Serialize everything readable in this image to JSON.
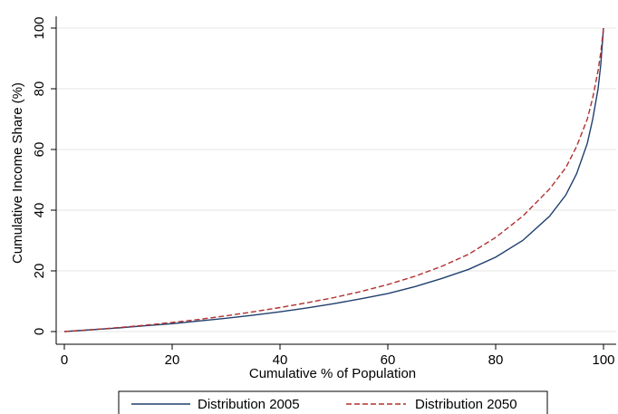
{
  "chart_data": {
    "type": "line",
    "title": "",
    "xlabel": "Cumulative % of Population",
    "ylabel": "Cumulative Income Share (%)",
    "xlim": [
      0,
      100
    ],
    "ylim": [
      0,
      100
    ],
    "xticks": [
      0,
      20,
      40,
      60,
      80,
      100
    ],
    "yticks": [
      0,
      20,
      40,
      60,
      80,
      100
    ],
    "grid": "horizontal",
    "legend_position": "bottom",
    "series": [
      {
        "name": "Distribution 2005",
        "color": "#1f3f6e",
        "style": "solid",
        "x": [
          0,
          5,
          10,
          15,
          20,
          25,
          30,
          35,
          40,
          45,
          50,
          55,
          60,
          65,
          70,
          75,
          80,
          85,
          90,
          93,
          95,
          97,
          98,
          99,
          99.5,
          100
        ],
        "y": [
          0,
          0.6,
          1.2,
          1.9,
          2.6,
          3.5,
          4.4,
          5.4,
          6.5,
          7.8,
          9.2,
          10.8,
          12.5,
          14.8,
          17.5,
          20.5,
          24.5,
          30,
          38,
          45,
          52,
          62,
          70,
          80,
          88,
          100
        ]
      },
      {
        "name": "Distribution 2050",
        "color": "#b03030",
        "style": "dashed",
        "x": [
          0,
          5,
          10,
          15,
          20,
          25,
          30,
          35,
          40,
          45,
          50,
          55,
          60,
          65,
          70,
          75,
          80,
          85,
          90,
          93,
          95,
          97,
          98,
          99,
          99.5,
          100
        ],
        "y": [
          0,
          0.6,
          1.3,
          2.1,
          3.0,
          4.0,
          5.2,
          6.5,
          7.9,
          9.5,
          11.2,
          13.2,
          15.5,
          18.2,
          21.5,
          25.5,
          31,
          38,
          47,
          54,
          61,
          70,
          77,
          86,
          92,
          100
        ]
      }
    ]
  }
}
